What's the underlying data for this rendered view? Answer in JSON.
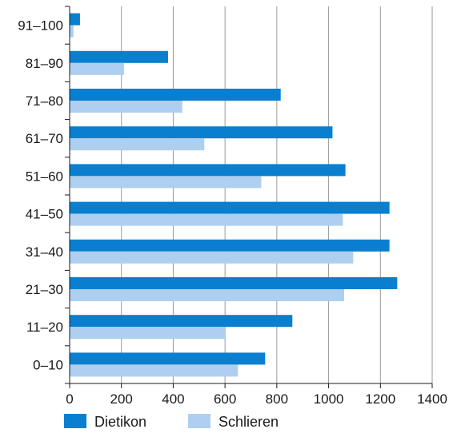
{
  "chart_data": {
    "type": "bar",
    "orientation": "horizontal",
    "categories": [
      "0–10",
      "11–20",
      "21–30",
      "31–40",
      "41–50",
      "51–60",
      "61–70",
      "71–80",
      "81–90",
      "91–100"
    ],
    "series": [
      {
        "name": "Dietikon",
        "color": "#0a7fd0",
        "values": [
          755,
          860,
          1265,
          1235,
          1235,
          1065,
          1015,
          815,
          380,
          40
        ]
      },
      {
        "name": "Schlieren",
        "color": "#aecff0",
        "values": [
          650,
          600,
          1060,
          1095,
          1055,
          740,
          520,
          435,
          210,
          15
        ]
      }
    ],
    "x_ticks": [
      "0",
      "200",
      "400",
      "600",
      "800",
      "1000",
      "1200",
      "1400"
    ],
    "xlim": [
      0,
      1400
    ],
    "grid": true,
    "legend_position": "bottom-left"
  }
}
